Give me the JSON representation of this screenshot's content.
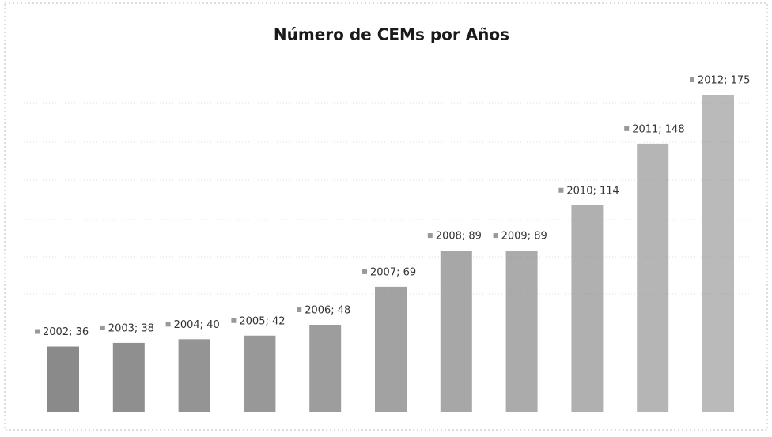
{
  "chart_data": {
    "type": "bar",
    "title": "Número de CEMs por Años",
    "values": [
      36,
      38,
      40,
      42,
      48,
      69,
      89,
      89,
      114,
      148,
      175
    ],
    "value_labels": [
      "2002; 36",
      "2003; 38",
      "2004; 40",
      "2005; 42",
      "2006; 48",
      "2007; 69",
      "2008; 89",
      "2009; 89",
      "2010; 114",
      "2011; 148",
      "2012; 175"
    ],
    "color": "#8a8a8a"
  }
}
